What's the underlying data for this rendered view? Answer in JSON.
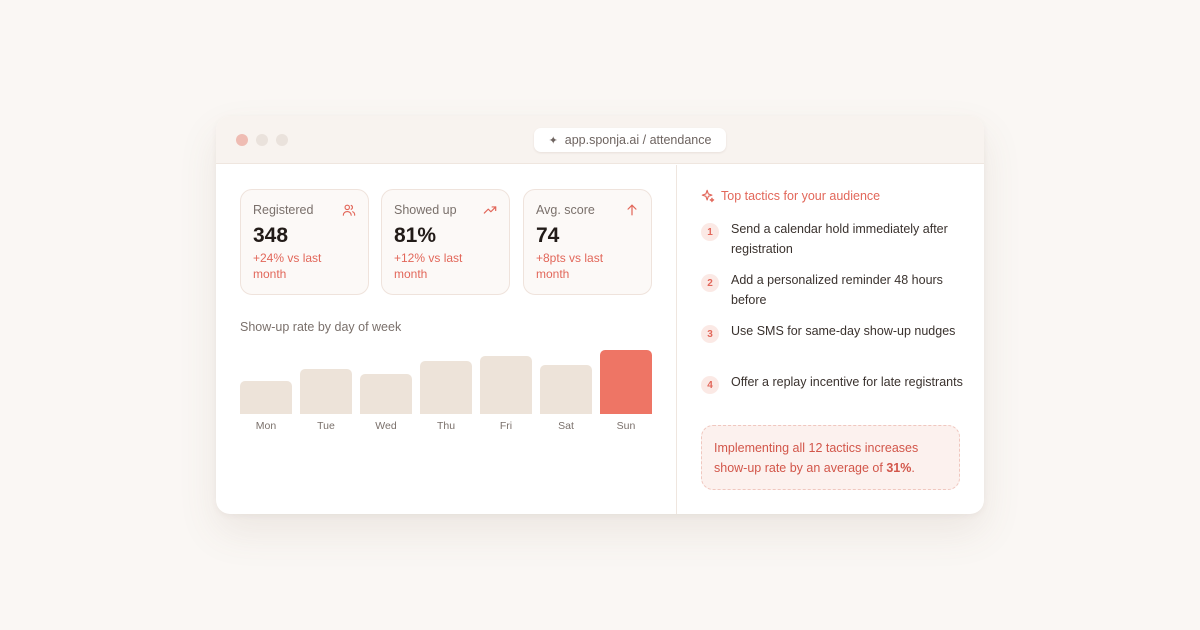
{
  "window": {
    "url": "app.sponja.ai / attendance",
    "url_icon": "sparkle-icon"
  },
  "stats": [
    {
      "label": "Registered",
      "value": "348",
      "delta": "+24% vs last month",
      "icon": "users-icon"
    },
    {
      "label": "Showed up",
      "value": "81%",
      "delta": "+12% vs last month",
      "icon": "trending-up-icon"
    },
    {
      "label": "Avg. score",
      "value": "74",
      "delta": "+8pts vs last month",
      "icon": "arrow-up-icon"
    }
  ],
  "chart_data": {
    "type": "bar",
    "title": "Show-up rate by day of week",
    "categories": [
      "Mon",
      "Tue",
      "Wed",
      "Thu",
      "Fri",
      "Sat",
      "Sun"
    ],
    "values": [
      52,
      70,
      63,
      83,
      91,
      77,
      100
    ],
    "ylim": [
      0,
      100
    ],
    "highlight": "Sun",
    "grid": false
  },
  "tactics": {
    "title": "Top tactics for your audience",
    "icon": "sparkles-icon",
    "items": [
      {
        "num": "1",
        "text": "Send a calendar hold immediately after registration"
      },
      {
        "num": "2",
        "text": "Add a personalized reminder 48 hours before"
      },
      {
        "num": "3",
        "text": "Use SMS for same-day show-up nudges"
      },
      {
        "num": "4",
        "text": "Offer a replay incentive for late registrants"
      }
    ]
  },
  "callout": {
    "text_before": "Implementing all 12 tactics increases show-up rate by an average of ",
    "highlight": "31%",
    "text_after": "."
  },
  "colors": {
    "accent": "#ee7565",
    "accent_text": "#e2675a",
    "bar": "#ede3d9",
    "background": "#faf7f4"
  }
}
